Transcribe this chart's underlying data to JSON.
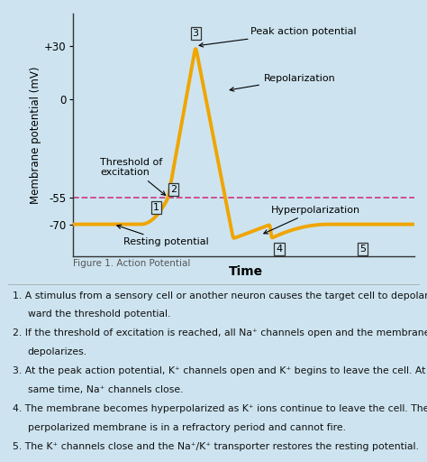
{
  "background_color": "#cde4f0",
  "chart_bg": "#cde4f0",
  "figure_caption": "Figure 1. Action Potential",
  "ylabel": "Membrane potential (mV)",
  "xlabel": "Time",
  "yticks": [
    -70,
    -55,
    0,
    30
  ],
  "ytick_labels": [
    "-70",
    "-55",
    "0",
    "+30"
  ],
  "ylim": [
    -88,
    48
  ],
  "xlim": [
    0,
    10
  ],
  "threshold": -55,
  "resting": -70,
  "curve_color": "#f0a500",
  "curve_lw": 2.8,
  "threshold_line_color": "#cc4488",
  "fig_caption_color": "#555555"
}
